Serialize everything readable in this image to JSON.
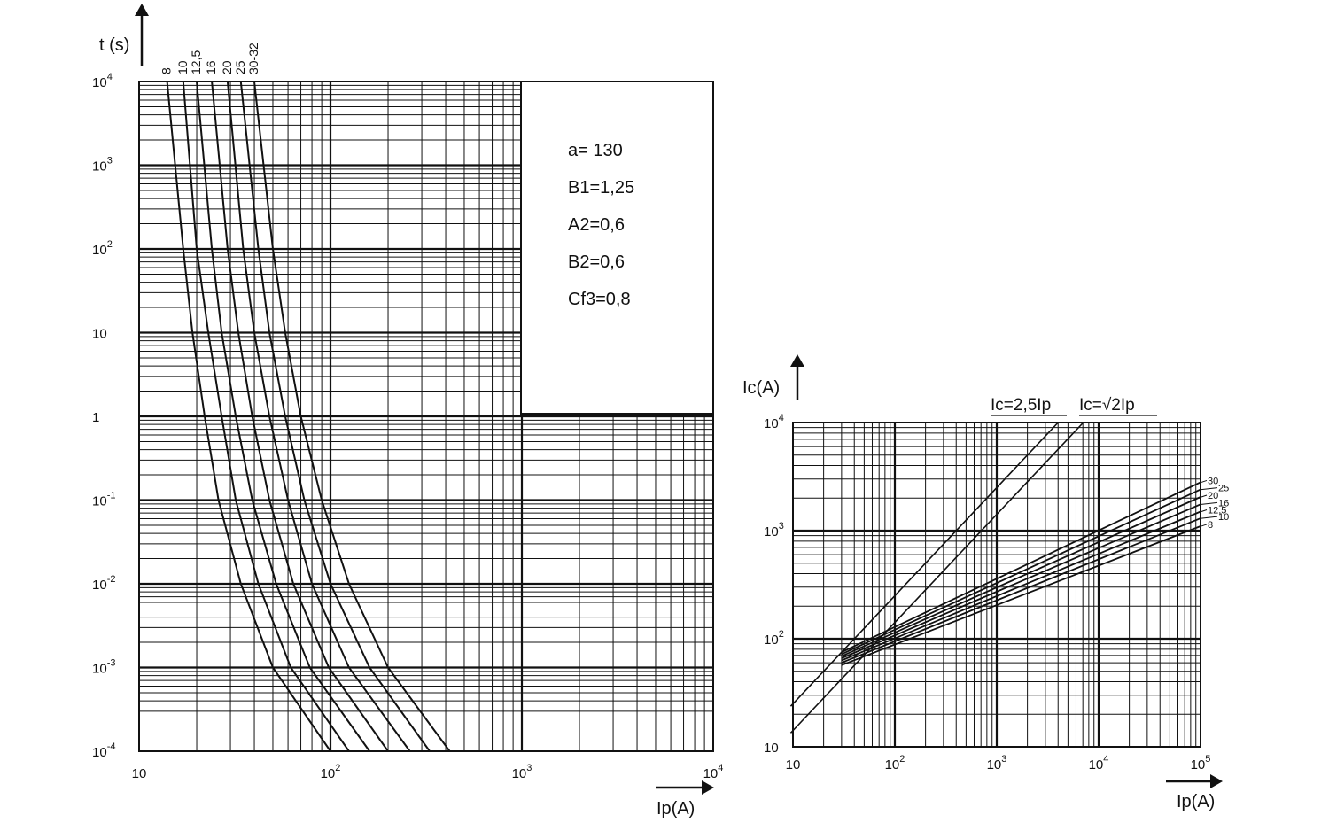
{
  "chart_data": [
    {
      "type": "line",
      "xlabel": "Ip(A)",
      "ylabel": "t (s)",
      "x_scale": "log",
      "y_scale": "log",
      "xlim": [
        10,
        10000
      ],
      "ylim": [
        0.0001,
        10000
      ],
      "grid": true,
      "x_ticks": [
        {
          "base": "10",
          "exp": ""
        },
        {
          "base": "10",
          "exp": "2"
        },
        {
          "base": "10",
          "exp": "3"
        },
        {
          "base": "10",
          "exp": "4"
        }
      ],
      "y_ticks": [
        {
          "base": "10",
          "exp": "-4"
        },
        {
          "base": "10",
          "exp": "-3"
        },
        {
          "base": "10",
          "exp": "-2"
        },
        {
          "base": "10",
          "exp": "-1"
        },
        {
          "base": "1",
          "exp": ""
        },
        {
          "base": "10",
          "exp": ""
        },
        {
          "base": "10",
          "exp": "2"
        },
        {
          "base": "10",
          "exp": "3"
        },
        {
          "base": "10",
          "exp": "4"
        }
      ],
      "parameters": [
        "a= 130",
        "B1=1,25",
        "A2=0,6",
        "B2=0,6",
        "Cf3=0,8"
      ],
      "series": [
        {
          "name": "8",
          "points": [
            [
              14,
              10000
            ],
            [
              17,
              100
            ],
            [
              19,
              10
            ],
            [
              22,
              1
            ],
            [
              26,
              0.1
            ],
            [
              34,
              0.01
            ],
            [
              50,
              0.001
            ],
            [
              100,
              0.0001
            ]
          ]
        },
        {
          "name": "10",
          "points": [
            [
              17,
              10000
            ],
            [
              20,
              100
            ],
            [
              23,
              10
            ],
            [
              27,
              1
            ],
            [
              32,
              0.1
            ],
            [
              42,
              0.01
            ],
            [
              62,
              0.001
            ],
            [
              125,
              0.0001
            ]
          ]
        },
        {
          "name": "12,5",
          "points": [
            [
              20,
              10000
            ],
            [
              24,
              100
            ],
            [
              27,
              10
            ],
            [
              32,
              1
            ],
            [
              39,
              0.1
            ],
            [
              52,
              0.01
            ],
            [
              78,
              0.001
            ],
            [
              160,
              0.0001
            ]
          ]
        },
        {
          "name": "16",
          "points": [
            [
              24,
              10000
            ],
            [
              29,
              100
            ],
            [
              33,
              10
            ],
            [
              39,
              1
            ],
            [
              48,
              0.1
            ],
            [
              64,
              0.01
            ],
            [
              98,
              0.001
            ],
            [
              200,
              0.0001
            ]
          ]
        },
        {
          "name": "20",
          "points": [
            [
              29,
              10000
            ],
            [
              35,
              100
            ],
            [
              40,
              10
            ],
            [
              48,
              1
            ],
            [
              60,
              0.1
            ],
            [
              80,
              0.01
            ],
            [
              125,
              0.001
            ],
            [
              260,
              0.0001
            ]
          ]
        },
        {
          "name": "25",
          "points": [
            [
              34,
              10000
            ],
            [
              42,
              100
            ],
            [
              48,
              10
            ],
            [
              58,
              1
            ],
            [
              73,
              0.1
            ],
            [
              100,
              0.01
            ],
            [
              160,
              0.001
            ],
            [
              330,
              0.0001
            ]
          ]
        },
        {
          "name": "30-32",
          "points": [
            [
              40,
              10000
            ],
            [
              50,
              100
            ],
            [
              58,
              10
            ],
            [
              70,
              1
            ],
            [
              90,
              0.1
            ],
            [
              125,
              0.01
            ],
            [
              200,
              0.001
            ],
            [
              420,
              0.0001
            ]
          ]
        }
      ]
    },
    {
      "type": "line",
      "xlabel": "Ip(A)",
      "ylabel": "Ic(A)",
      "x_scale": "log",
      "y_scale": "log",
      "xlim": [
        10,
        100000
      ],
      "ylim": [
        10,
        10000
      ],
      "grid": true,
      "x_ticks": [
        {
          "base": "10",
          "exp": ""
        },
        {
          "base": "10",
          "exp": "2"
        },
        {
          "base": "10",
          "exp": "3"
        },
        {
          "base": "10",
          "exp": "4"
        },
        {
          "base": "10",
          "exp": "5"
        }
      ],
      "y_ticks": [
        {
          "base": "10",
          "exp": ""
        },
        {
          "base": "10",
          "exp": "2"
        },
        {
          "base": "10",
          "exp": "3"
        },
        {
          "base": "10",
          "exp": "4"
        }
      ],
      "reference_lines": [
        {
          "label_pre": "Ic=2,5Ip",
          "label_root": "",
          "label_post": "",
          "factor": 2.5
        },
        {
          "label_pre": "Ic=",
          "label_root": "2",
          "label_post": "Ip",
          "factor": 1.414
        }
      ],
      "series": [
        {
          "name": "30",
          "points": [
            [
              30,
              75
            ],
            [
              100000,
              2800
            ]
          ]
        },
        {
          "name": "25",
          "points": [
            [
              30,
              72
            ],
            [
              100000,
              2400
            ]
          ]
        },
        {
          "name": "20",
          "points": [
            [
              30,
              69
            ],
            [
              100000,
              2050
            ]
          ]
        },
        {
          "name": "16",
          "points": [
            [
              30,
              66
            ],
            [
              100000,
              1750
            ]
          ]
        },
        {
          "name": "12,5",
          "points": [
            [
              30,
              63
            ],
            [
              100000,
              1500
            ]
          ]
        },
        {
          "name": "10",
          "points": [
            [
              30,
              60
            ],
            [
              100000,
              1300
            ]
          ]
        },
        {
          "name": "8",
          "points": [
            [
              30,
              57
            ],
            [
              100000,
              1100
            ]
          ]
        }
      ]
    }
  ]
}
